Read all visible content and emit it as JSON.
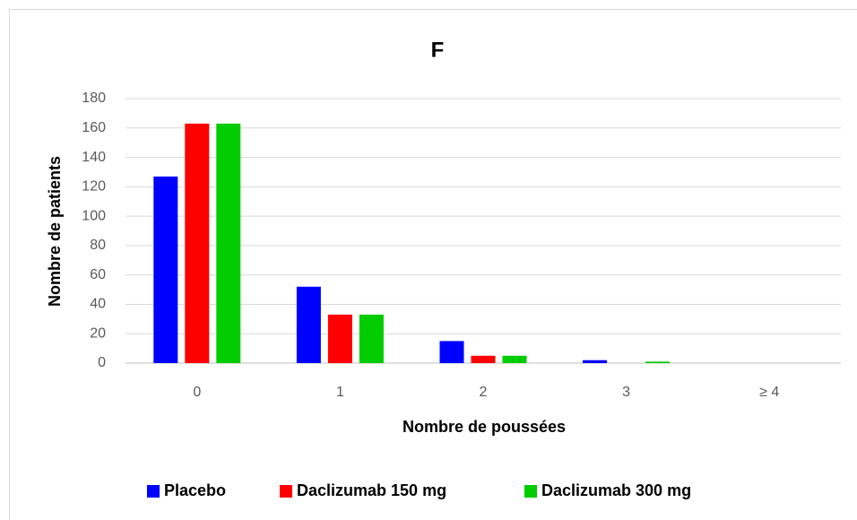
{
  "chart_data": {
    "type": "bar",
    "title": "F",
    "x_label": "Nombre de poussées",
    "y_label": "Nombre de patients",
    "categories": [
      "0",
      "1",
      "2",
      "3",
      "≥ 4"
    ],
    "series": [
      {
        "name": "Placebo",
        "color": "#0000ff",
        "values": [
          127,
          52,
          15,
          2,
          0
        ]
      },
      {
        "name": "Daclizumab 150 mg",
        "color": "#ff0000",
        "values": [
          163,
          33,
          5,
          0,
          0
        ]
      },
      {
        "name": "Daclizumab 300 mg",
        "color": "#00cc00",
        "values": [
          163,
          33,
          5,
          1,
          0
        ]
      }
    ],
    "ylim": [
      0,
      180
    ],
    "yticks": [
      0,
      20,
      40,
      60,
      80,
      100,
      120,
      140,
      160,
      180
    ],
    "grid": true,
    "legend": "bottom"
  }
}
